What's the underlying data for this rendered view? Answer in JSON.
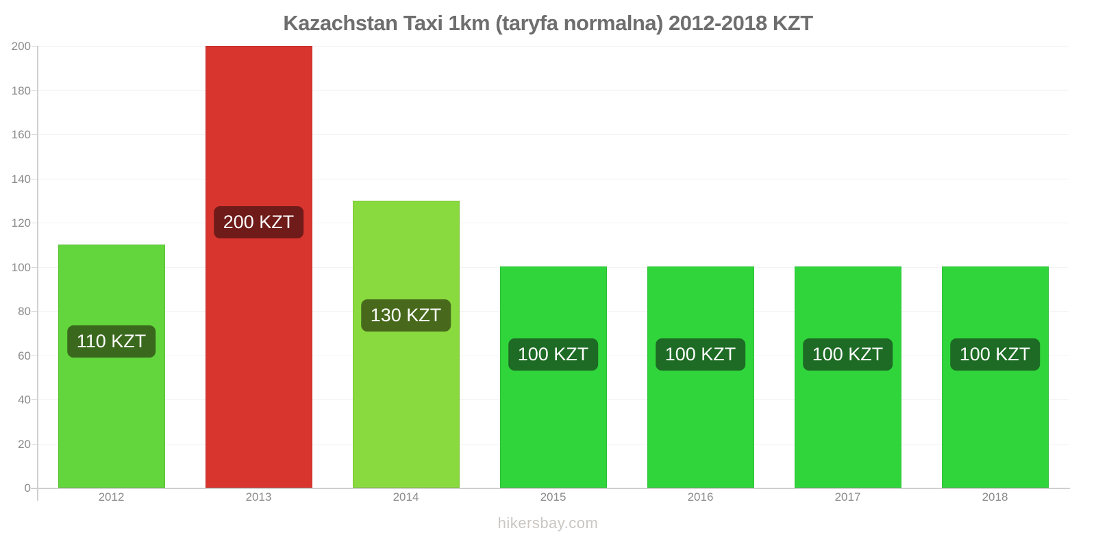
{
  "title": "Kazachstan Taxi 1km (taryfa normalna) 2012-2018 KZT",
  "footer": "hikersbay.com",
  "chart_data": {
    "type": "bar",
    "title": "Kazachstan Taxi 1km (taryfa normalna) 2012-2018 KZT",
    "xlabel": "",
    "ylabel": "",
    "categories": [
      "2012",
      "2013",
      "2014",
      "2015",
      "2016",
      "2017",
      "2018"
    ],
    "values": [
      110,
      200,
      130,
      100,
      100,
      100,
      100
    ],
    "value_labels": [
      "110 KZT",
      "200 KZT",
      "130 KZT",
      "100 KZT",
      "100 KZT",
      "100 KZT",
      "100 KZT"
    ],
    "bar_colors": [
      "#62d63c",
      "#d8352f",
      "#89da3e",
      "#30d53c",
      "#30d53c",
      "#30d53c",
      "#30d53c"
    ],
    "label_bg_colors": [
      "#3a691d",
      "#6f1b19",
      "#48691c",
      "#1d6b24",
      "#1d6b24",
      "#1d6b24",
      "#1d6b24"
    ],
    "ylim": [
      0,
      200
    ],
    "ytick_step": 20,
    "ytick_labels": [
      "0",
      "20",
      "40",
      "60",
      "80",
      "100",
      "120",
      "140",
      "160",
      "180",
      "200"
    ],
    "grid": true,
    "legend": false,
    "currency": "KZT",
    "source": "hikersbay.com"
  },
  "colors": {
    "axis": "#cfcfcf",
    "grid": "#f3f3f3",
    "tick_label": "#8b8b8b",
    "title": "#6e6e6e",
    "footer": "#cbc6c2",
    "bar_label_text": "#ffffff"
  }
}
